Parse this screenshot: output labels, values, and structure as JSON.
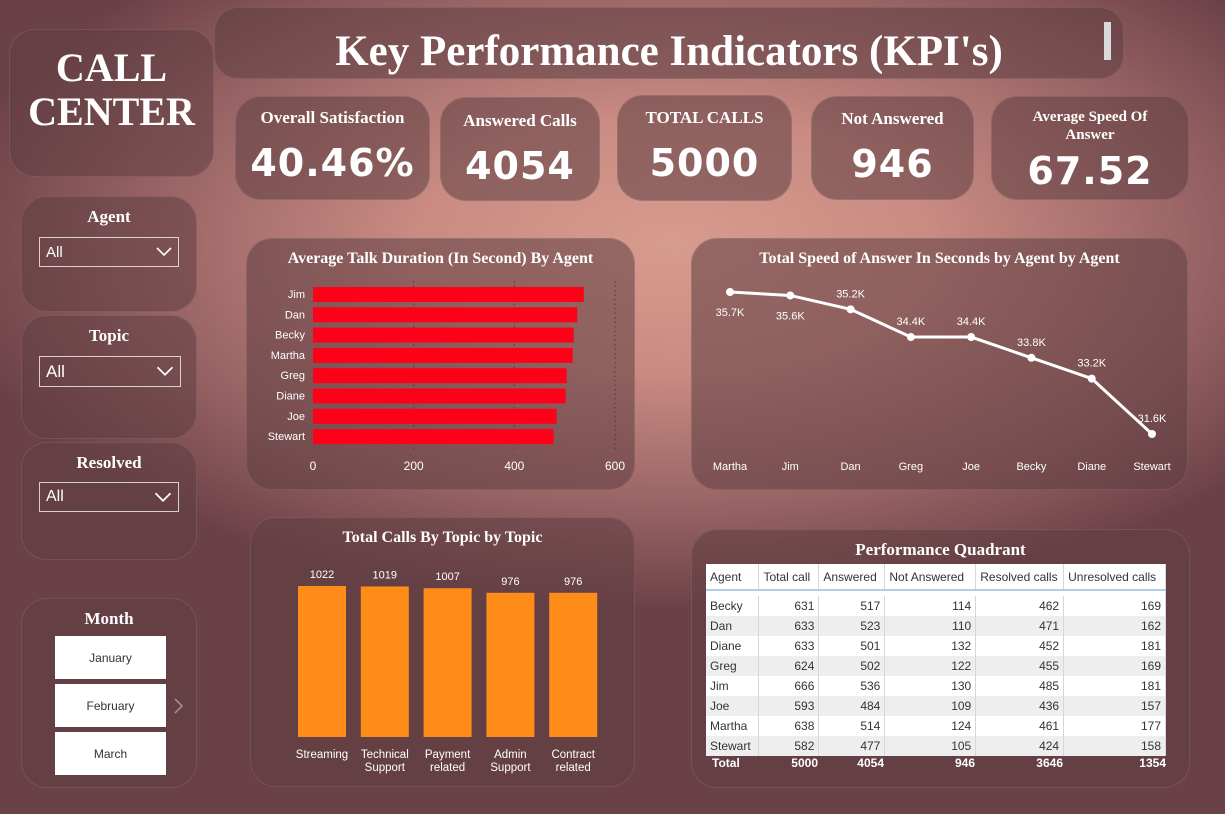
{
  "header": {
    "title": "Key Performance Indicators (KPI's)"
  },
  "brand": {
    "line1": "CALL",
    "line2": "CENTER"
  },
  "kpis": [
    {
      "label": "Overall Satisfaction",
      "value": "40.46%"
    },
    {
      "label": "Answered Calls",
      "value": "4054"
    },
    {
      "label": "TOTAL CALLS",
      "value": "5000"
    },
    {
      "label": "Not Answered",
      "value": "946"
    },
    {
      "label": "Average Speed Of Answer",
      "value": "67.52"
    }
  ],
  "slicers": {
    "agent": {
      "title": "Agent",
      "value": "All"
    },
    "topic": {
      "title": "Topic",
      "value": "All"
    },
    "resolved": {
      "title": "Resolved",
      "value": "All"
    },
    "month": {
      "title": "Month",
      "items": [
        "January",
        "February",
        "March"
      ]
    }
  },
  "chart_data": [
    {
      "type": "bar",
      "orientation": "horizontal",
      "title": "Average Talk Duration (In Second) By Agent",
      "categories": [
        "Jim",
        "Dan",
        "Becky",
        "Martha",
        "Greg",
        "Diane",
        "Joe",
        "Stewart"
      ],
      "values": [
        538,
        525,
        518,
        516,
        504,
        502,
        484,
        478
      ],
      "xlim": [
        0,
        600
      ],
      "xticks": [
        "0",
        "200",
        "400",
        "600"
      ],
      "grid": true,
      "color": "#ff0019"
    },
    {
      "type": "line",
      "title": "Total Speed of Answer In Seconds by Agent by Agent",
      "categories": [
        "Martha",
        "Jim",
        "Dan",
        "Greg",
        "Joe",
        "Becky",
        "Diane",
        "Stewart"
      ],
      "values": [
        35.7,
        35.6,
        35.2,
        34.4,
        34.4,
        33.8,
        33.2,
        31.6
      ],
      "labels": [
        "35.7K",
        "35.6K",
        "35.2K",
        "34.4K",
        "34.4K",
        "33.8K",
        "33.2K",
        "31.6K"
      ],
      "unit": "K",
      "color": "#ffffff"
    },
    {
      "type": "bar",
      "title": "Total Calls By Topic by Topic",
      "categories": [
        "Streaming",
        "Technical Support",
        "Payment related",
        "Admin Support",
        "Contract related"
      ],
      "category_lines": [
        [
          "Streaming"
        ],
        [
          "Technical",
          "Support"
        ],
        [
          "Payment",
          "related"
        ],
        [
          "Admin",
          "Support"
        ],
        [
          "Contract",
          "related"
        ]
      ],
      "values": [
        1022,
        1019,
        1007,
        976,
        976
      ],
      "color": "#ff8c19"
    },
    {
      "type": "table",
      "title": "Performance Quadrant",
      "columns": [
        "Agent",
        "Total call",
        "Answered",
        "Not Answered",
        "Resolved calls",
        "Unresolved calls"
      ],
      "rows": [
        [
          "Becky",
          "631",
          "517",
          "114",
          "462",
          "169"
        ],
        [
          "Dan",
          "633",
          "523",
          "110",
          "471",
          "162"
        ],
        [
          "Diane",
          "633",
          "501",
          "132",
          "452",
          "181"
        ],
        [
          "Greg",
          "624",
          "502",
          "122",
          "455",
          "169"
        ],
        [
          "Jim",
          "666",
          "536",
          "130",
          "485",
          "181"
        ],
        [
          "Joe",
          "593",
          "484",
          "109",
          "436",
          "157"
        ],
        [
          "Martha",
          "638",
          "514",
          "124",
          "461",
          "177"
        ],
        [
          "Stewart",
          "582",
          "477",
          "105",
          "424",
          "158"
        ]
      ],
      "total": [
        "Total",
        "5000",
        "4054",
        "946",
        "3646",
        "1354"
      ]
    }
  ]
}
